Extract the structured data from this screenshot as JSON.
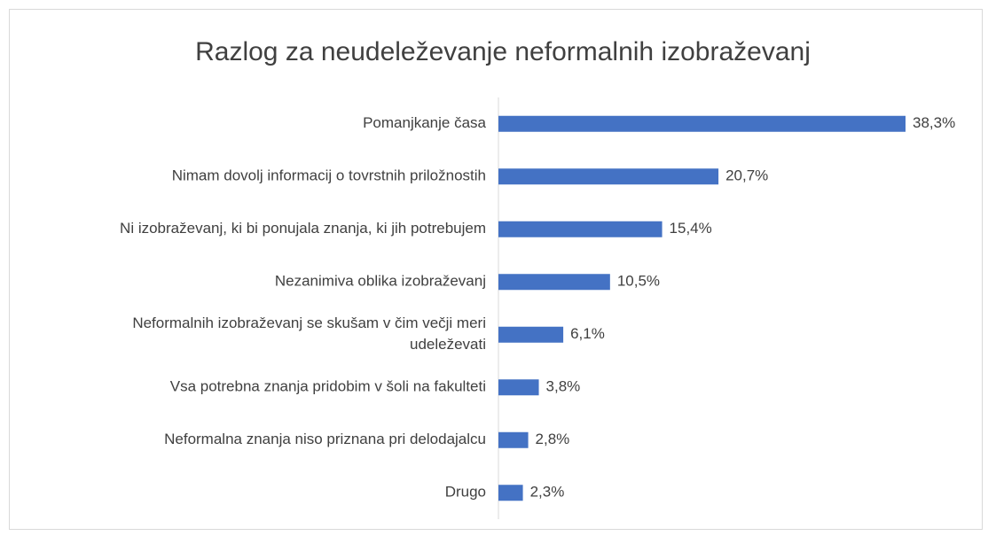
{
  "chart_data": {
    "type": "barh",
    "title": "Razlog za neudeleževanje neformalnih izobraževanj",
    "categories": [
      "Pomanjkanje časa",
      "Nimam dovolj informacij o tovrstnih priložnostih",
      "Ni izobraževanj, ki bi ponujala znanja, ki jih potrebujem",
      "Nezanimiva oblika izobraževanj",
      "Neformalnih izobraževanj se skušam v čim večji meri udeleževati",
      "Vsa potrebna znanja pridobim v šoli na fakulteti",
      "Neformalna znanja niso priznana pri delodajalcu",
      "Drugo"
    ],
    "values": [
      38.3,
      20.7,
      15.4,
      10.5,
      6.1,
      3.8,
      2.8,
      2.3
    ],
    "value_labels": [
      "38,3%",
      "20,7%",
      "15,4%",
      "10,5%",
      "6,1%",
      "3,8%",
      "2,8%",
      "2,3%"
    ],
    "color": "#4472c4"
  }
}
